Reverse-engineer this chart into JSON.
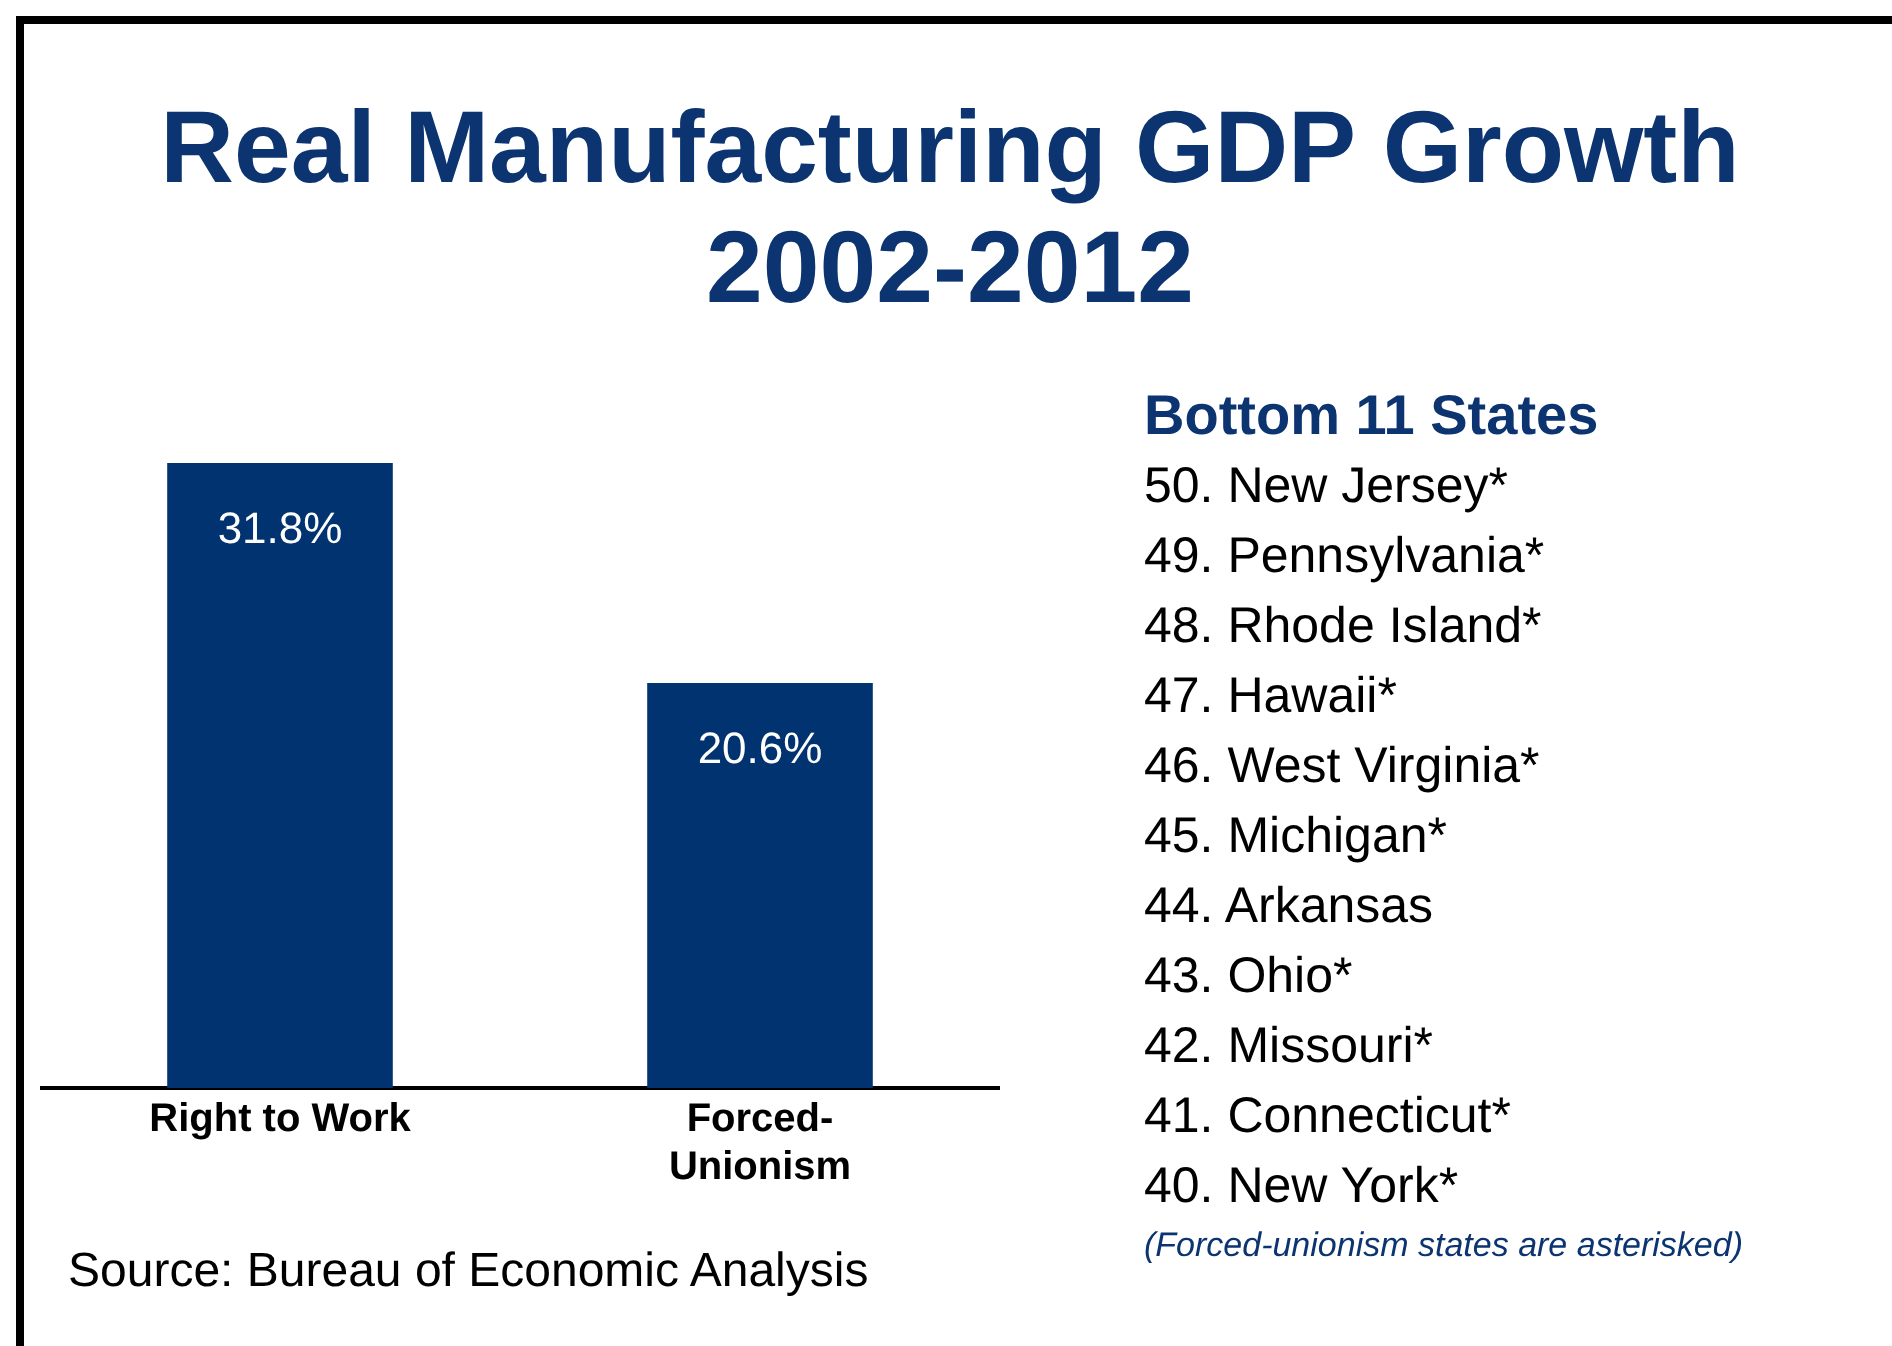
{
  "chart_data": {
    "type": "bar",
    "title": "Real Manufacturing GDP Growth 2002-2012",
    "categories": [
      "Right to Work",
      "Forced-Unionism"
    ],
    "values": [
      31.8,
      20.6
    ],
    "color": "#00336f",
    "value_labels": [
      "31.8%",
      "20.6%"
    ],
    "grid": false,
    "legend": false,
    "annotations": [
      "Bottom 11 States",
      "50.  New Jersey*",
      "49.  Pennsylvania*",
      "48.  Rhode Island*",
      "47.  Hawaii*",
      "46.  West Virginia*",
      "45.  Michigan*",
      "44.  Arkansas",
      "43.  Ohio*",
      "42.  Missouri*",
      "41.  Connecticut*",
      "40. New York*",
      "(Forced-unionism states are asterisked)",
      "Source: Bureau of Economic Analysis"
    ]
  }
}
